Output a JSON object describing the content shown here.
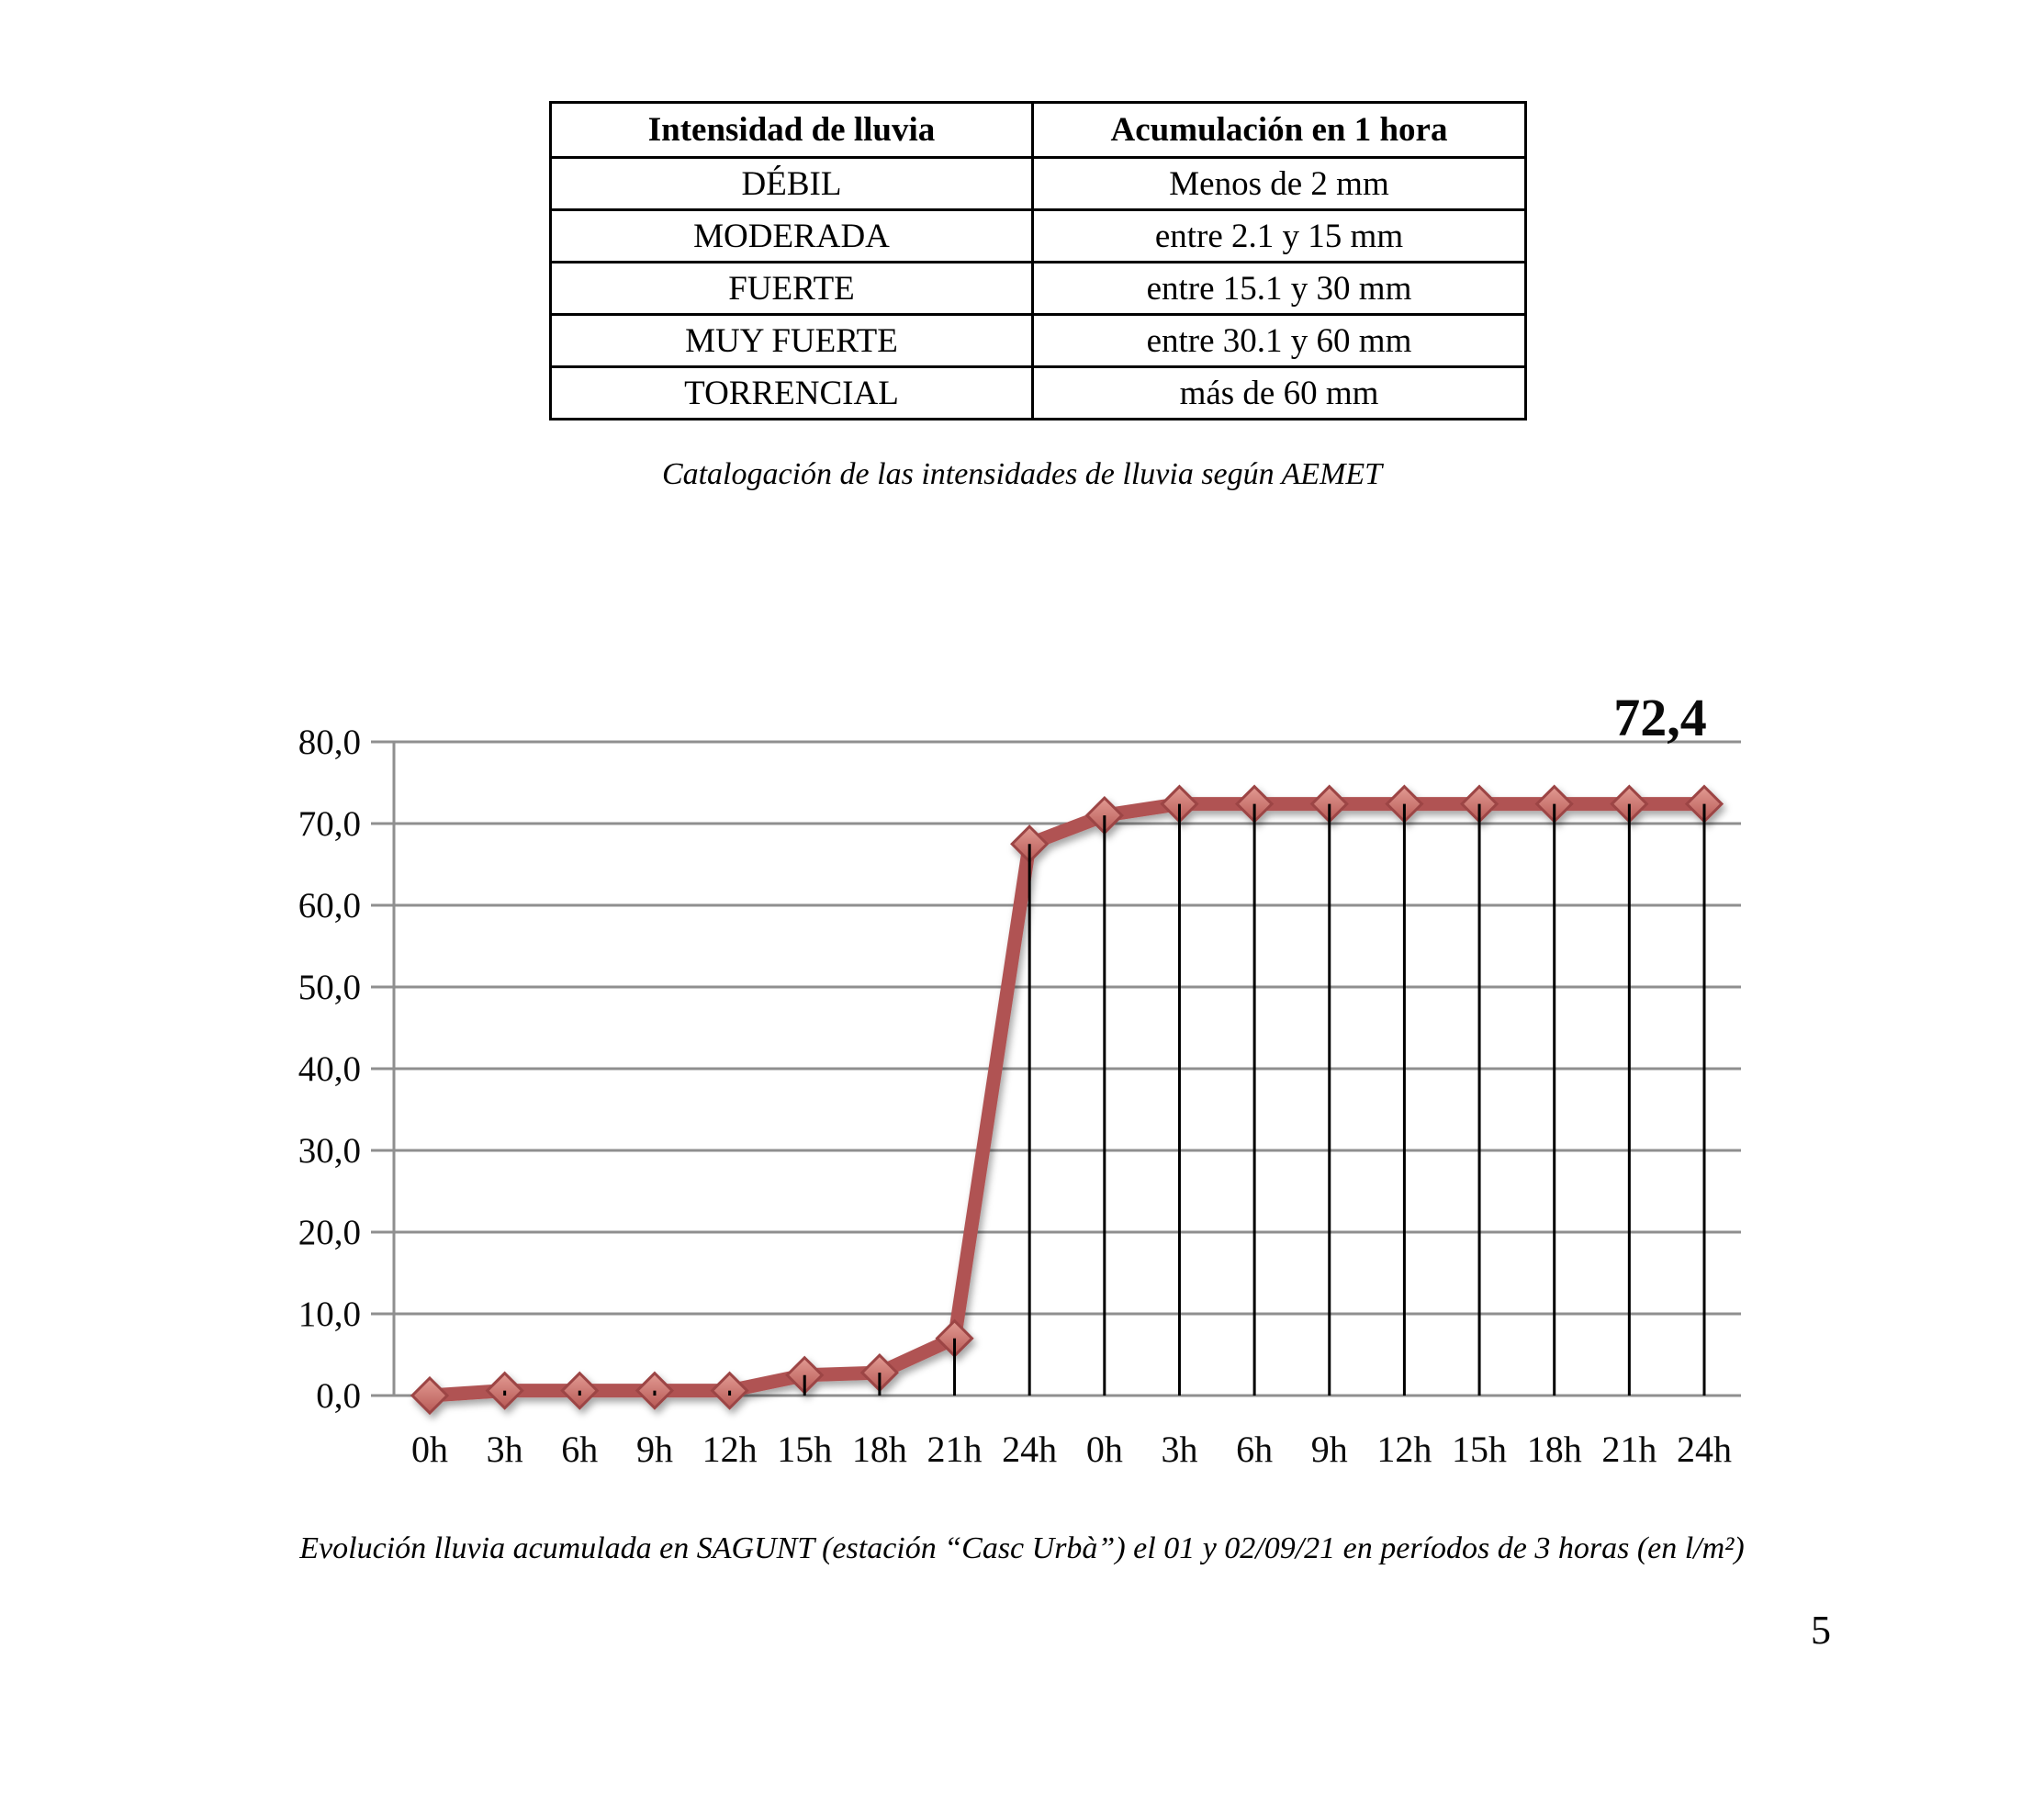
{
  "table": {
    "headers": [
      "Intensidad de lluvia",
      "Acumulación en 1 hora"
    ],
    "rows": [
      {
        "intensity": "DÉBIL",
        "accumulation": "Menos de 2 mm"
      },
      {
        "intensity": "MODERADA",
        "accumulation": "entre 2.1 y 15 mm"
      },
      {
        "intensity": "FUERTE",
        "accumulation": "entre 15.1 y 30 mm"
      },
      {
        "intensity": "MUY FUERTE",
        "accumulation": "entre 30.1 y 60 mm"
      },
      {
        "intensity": "TORRENCIAL",
        "accumulation": "más de 60 mm"
      }
    ]
  },
  "table_caption": "Catalogación de las intensidades de lluvia según AEMET",
  "chart_data": {
    "type": "line",
    "title": "",
    "xlabel": "",
    "ylabel": "",
    "categories": [
      "0h",
      "3h",
      "6h",
      "9h",
      "12h",
      "15h",
      "18h",
      "21h",
      "24h",
      "0h",
      "3h",
      "6h",
      "9h",
      "12h",
      "15h",
      "18h",
      "21h",
      "24h"
    ],
    "values": [
      0.0,
      0.6,
      0.6,
      0.6,
      0.6,
      2.5,
      2.8,
      7.0,
      67.5,
      71.0,
      72.4,
      72.4,
      72.4,
      72.4,
      72.4,
      72.4,
      72.4,
      72.4
    ],
    "annotation": "72,4",
    "annotation_value": 72.4,
    "ylim": [
      0,
      80
    ],
    "ytick_values": [
      0,
      10,
      20,
      30,
      40,
      50,
      60,
      70,
      80
    ],
    "ytick_labels": [
      "0,0",
      "10,0",
      "20,0",
      "30,0",
      "40,0",
      "50,0",
      "60,0",
      "70,0",
      "80,0"
    ],
    "grid": true,
    "legend": "none",
    "drop_lines": true,
    "colors": {
      "line": "#b05353",
      "marker_fill_top": "#e29b93",
      "marker_fill_bottom": "#b85a56",
      "marker_stroke": "#9c4444",
      "gridline": "#8f8f8f",
      "dropline": "#000000"
    }
  },
  "figure_caption": "Evolución lluvia acumulada en SAGUNT (estación “Casc Urbà”) el 01 y 02/09/21 en períodos de 3 horas (en l/m²)",
  "page_number": "5"
}
